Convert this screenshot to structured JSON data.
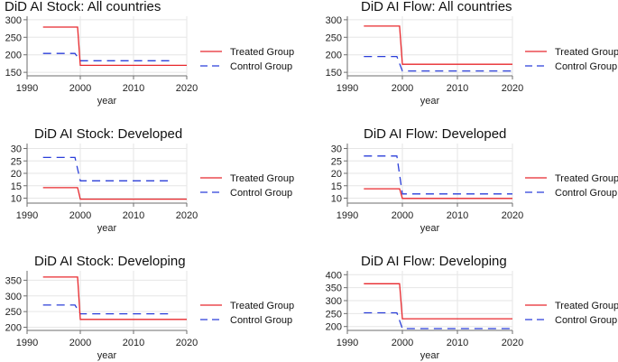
{
  "chart_data": [
    {
      "type": "line",
      "title": "DiD AI Stock: All countries",
      "xlabel": "year",
      "ylabel": "",
      "xlim": [
        1990,
        2020
      ],
      "ylim": [
        140,
        310
      ],
      "xticks": [
        1990,
        2000,
        2010,
        2020
      ],
      "yticks": [
        150,
        200,
        250,
        300
      ],
      "series": [
        {
          "name": "Treated Group",
          "x": [
            1993,
            1999.5,
            2000,
            2020
          ],
          "y": [
            279,
            279,
            170,
            170
          ]
        },
        {
          "name": "Control Group",
          "x": [
            1993,
            1999,
            2000,
            2017
          ],
          "y": [
            204,
            204,
            183,
            183
          ]
        }
      ],
      "legend": [
        "Treated Group",
        "Control Group"
      ],
      "grid": true
    },
    {
      "type": "line",
      "title": "DiD AI Flow: All countries",
      "xlabel": "year",
      "ylabel": "",
      "xlim": [
        1990,
        2020
      ],
      "ylim": [
        140,
        310
      ],
      "xticks": [
        1990,
        2000,
        2010,
        2020
      ],
      "yticks": [
        150,
        200,
        250,
        300
      ],
      "series": [
        {
          "name": "Treated Group",
          "x": [
            1993,
            1999.5,
            2000,
            2020
          ],
          "y": [
            282,
            282,
            173,
            173
          ]
        },
        {
          "name": "Control Group",
          "x": [
            1993,
            1999,
            2000,
            2020
          ],
          "y": [
            195,
            195,
            154,
            154
          ]
        }
      ],
      "legend": [
        "Treated Group",
        "Control Group"
      ],
      "grid": true
    },
    {
      "type": "line",
      "title": "DiD AI Stock: Developed",
      "xlabel": "year",
      "ylabel": "",
      "xlim": [
        1990,
        2020
      ],
      "ylim": [
        8,
        32
      ],
      "xticks": [
        1990,
        2000,
        2010,
        2020
      ],
      "yticks": [
        10,
        15,
        20,
        25,
        30
      ],
      "series": [
        {
          "name": "Treated Group",
          "x": [
            1993,
            1999.5,
            2000,
            2020
          ],
          "y": [
            14.2,
            14.2,
            9.6,
            9.6
          ]
        },
        {
          "name": "Control Group",
          "x": [
            1993,
            1999,
            2000,
            2017
          ],
          "y": [
            26.4,
            26.4,
            17.0,
            17.0
          ]
        }
      ],
      "legend": [
        "Treated Group",
        "Control Group"
      ],
      "grid": true
    },
    {
      "type": "line",
      "title": "DiD AI Flow: Developed",
      "xlabel": "year",
      "ylabel": "",
      "xlim": [
        1990,
        2020
      ],
      "ylim": [
        8,
        32
      ],
      "xticks": [
        1990,
        2000,
        2010,
        2020
      ],
      "yticks": [
        10,
        15,
        20,
        25,
        30
      ],
      "series": [
        {
          "name": "Treated Group",
          "x": [
            1993,
            1999.5,
            2000,
            2020
          ],
          "y": [
            13.8,
            13.8,
            9.9,
            9.9
          ]
        },
        {
          "name": "Control Group",
          "x": [
            1993,
            1999,
            2000,
            2020
          ],
          "y": [
            27.0,
            27.0,
            11.7,
            11.7
          ]
        }
      ],
      "legend": [
        "Treated Group",
        "Control Group"
      ],
      "grid": true
    },
    {
      "type": "line",
      "title": "DiD AI Stock: Developing",
      "xlabel": "year",
      "ylabel": "",
      "xlim": [
        1990,
        2020
      ],
      "ylim": [
        190,
        380
      ],
      "xticks": [
        1990,
        2000,
        2010,
        2020
      ],
      "yticks": [
        200,
        250,
        300,
        350
      ],
      "series": [
        {
          "name": "Treated Group",
          "x": [
            1993,
            1999.5,
            2000,
            2020
          ],
          "y": [
            360,
            360,
            225,
            225
          ]
        },
        {
          "name": "Control Group",
          "x": [
            1993,
            1999,
            2000,
            2017
          ],
          "y": [
            271,
            271,
            243,
            243
          ]
        }
      ],
      "legend": [
        "Treated Group",
        "Control Group"
      ],
      "grid": true
    },
    {
      "type": "line",
      "title": "DiD AI Flow: Developing",
      "xlabel": "year",
      "ylabel": "",
      "xlim": [
        1990,
        2020
      ],
      "ylim": [
        185,
        415
      ],
      "xticks": [
        1990,
        2000,
        2010,
        2020
      ],
      "yticks": [
        200,
        250,
        300,
        350,
        400
      ],
      "series": [
        {
          "name": "Treated Group",
          "x": [
            1993,
            1999.5,
            2000,
            2020
          ],
          "y": [
            365,
            365,
            230,
            230
          ]
        },
        {
          "name": "Control Group",
          "x": [
            1993,
            1999,
            2000,
            2020
          ],
          "y": [
            253,
            253,
            192,
            192
          ]
        }
      ],
      "legend": [
        "Treated Group",
        "Control Group"
      ],
      "grid": true
    }
  ],
  "colors": {
    "treated": "#e8282d",
    "control": "#2b3fd9",
    "grid": "#e6e6e6",
    "axis": "#6e6e6e"
  }
}
